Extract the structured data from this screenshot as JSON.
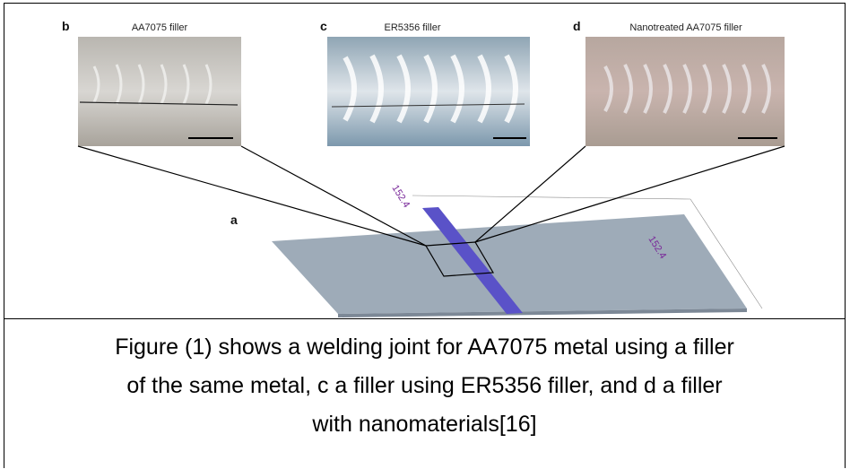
{
  "figure": {
    "panels": [
      {
        "letter": "b",
        "label": "AA7075 filler"
      },
      {
        "letter": "c",
        "label": "ER5356 filler"
      },
      {
        "letter": "d",
        "label": "Nanotreated AA7075 filler"
      }
    ],
    "main_letter": "a",
    "dimensions": [
      "152.4",
      "152.4"
    ]
  },
  "caption": {
    "lines": [
      "Figure (1) shows a welding joint for AA7075 metal using a filler",
      "of the same metal, c a filler using ER5356 filler, and d a filler",
      "with nanomaterials[16]"
    ]
  }
}
